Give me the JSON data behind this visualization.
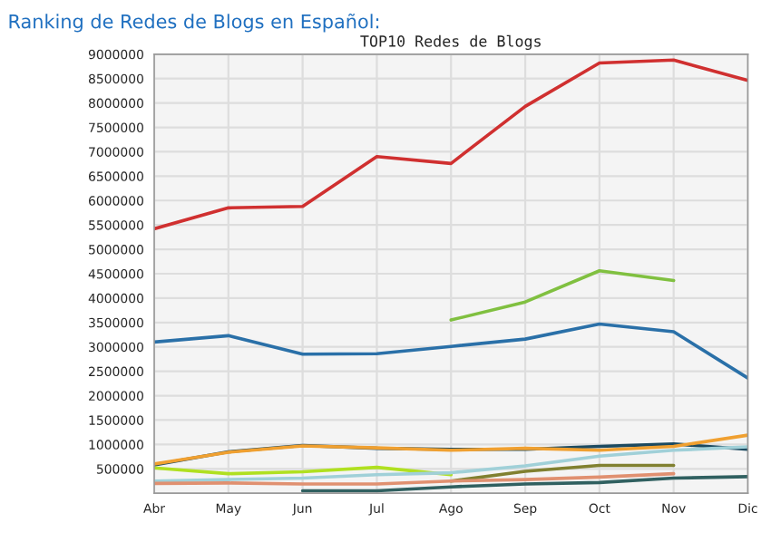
{
  "chart_data": {
    "type": "line",
    "title": "Ranking de Redes de Blogs en Español:",
    "subtitle": "TOP10 Redes de Blogs",
    "categories": [
      "Abr",
      "May",
      "Jun",
      "Jul",
      "Ago",
      "Sep",
      "Oct",
      "Nov",
      "Dic"
    ],
    "series": [
      {
        "color": "#d03030",
        "values": [
          5420000,
          5850000,
          5880000,
          6900000,
          6760000,
          7930000,
          8820000,
          8880000,
          8460000
        ]
      },
      {
        "color": "#80c040",
        "values": [
          null,
          null,
          null,
          null,
          3550000,
          3920000,
          4560000,
          4360000,
          null
        ]
      },
      {
        "color": "#2a70a8",
        "values": [
          3100000,
          3230000,
          2850000,
          2860000,
          3010000,
          3160000,
          3470000,
          3310000,
          2360000
        ]
      },
      {
        "color": "#1c4a60",
        "values": [
          580000,
          850000,
          980000,
          920000,
          900000,
          900000,
          960000,
          1010000,
          900000
        ]
      },
      {
        "color": "#f0a030",
        "values": [
          600000,
          840000,
          970000,
          930000,
          880000,
          920000,
          880000,
          960000,
          1190000
        ]
      },
      {
        "color": "#b0e020",
        "values": [
          520000,
          400000,
          440000,
          530000,
          380000,
          null,
          null,
          null,
          null
        ]
      },
      {
        "color": "#a0d0d8",
        "values": [
          250000,
          280000,
          310000,
          380000,
          420000,
          560000,
          760000,
          880000,
          950000
        ]
      },
      {
        "color": "#808030",
        "values": [
          null,
          null,
          null,
          null,
          250000,
          450000,
          570000,
          570000,
          null
        ]
      },
      {
        "color": "#e09070",
        "values": [
          200000,
          210000,
          190000,
          190000,
          250000,
          280000,
          330000,
          400000,
          null
        ]
      },
      {
        "color": "#306060",
        "values": [
          null,
          null,
          50000,
          50000,
          130000,
          190000,
          220000,
          310000,
          340000
        ]
      }
    ],
    "ylim": [
      0,
      9000000
    ],
    "yticks": [
      500000,
      1000000,
      1500000,
      2000000,
      2500000,
      3000000,
      3500000,
      4000000,
      4500000,
      5000000,
      5500000,
      6000000,
      6500000,
      7000000,
      7500000,
      8000000,
      8500000,
      9000000
    ],
    "grid": true,
    "marker": "none",
    "line_style": "solid"
  }
}
